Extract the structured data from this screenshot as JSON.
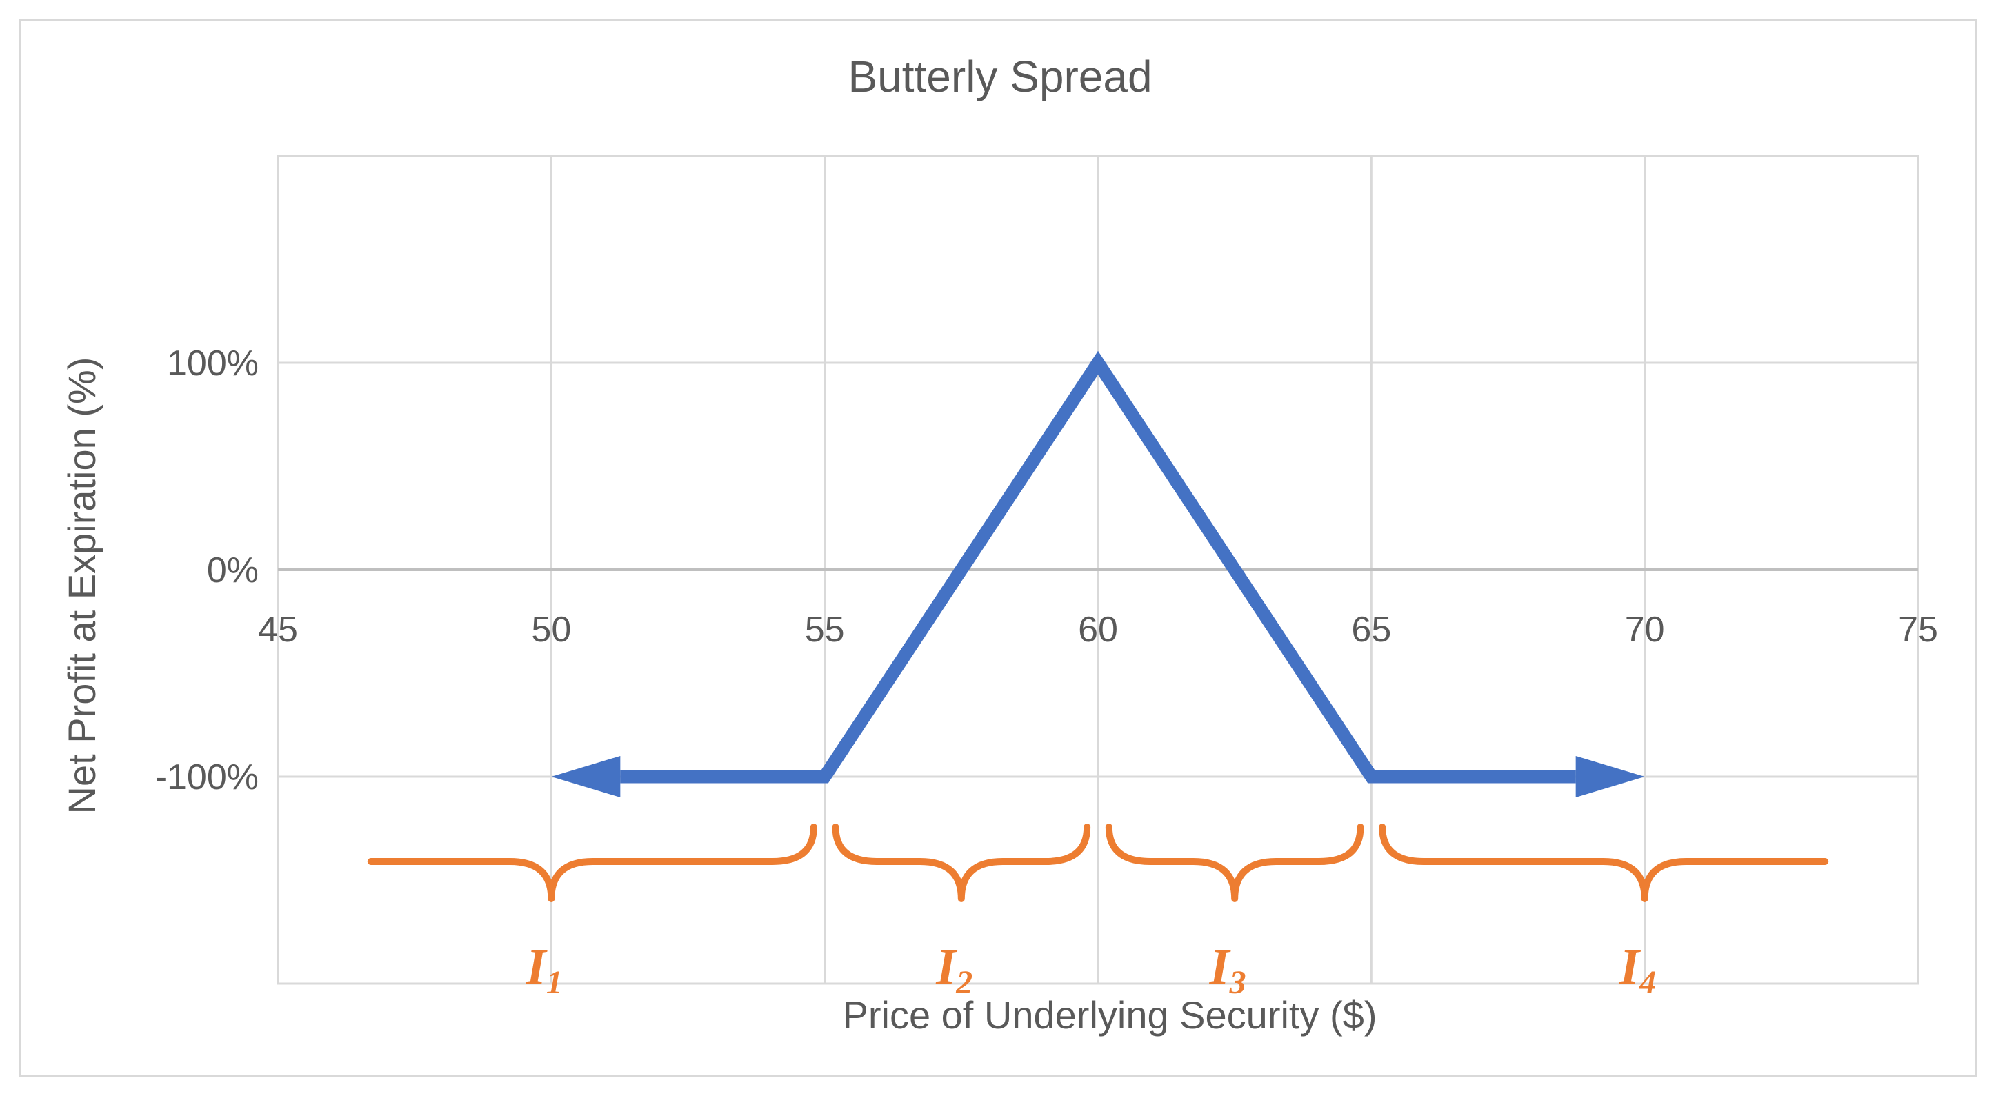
{
  "chart_data": {
    "type": "line",
    "title": "Butterly Spread",
    "xlabel": "Price of Underlying Security ($)",
    "ylabel": "Net Profit at Expiration (%)",
    "xlim": [
      45,
      75
    ],
    "ylim": [
      -200,
      200
    ],
    "x_ticks": [
      "45",
      "50",
      "55",
      "60",
      "65",
      "70",
      "75"
    ],
    "y_ticks": [
      {
        "value": 100,
        "label": "100%"
      },
      {
        "value": 0,
        "label": "0%"
      },
      {
        "value": -100,
        "label": "-100%"
      }
    ],
    "grid": true,
    "series": [
      {
        "color": "#4472c4",
        "points": [
          [
            50,
            -100
          ],
          [
            55,
            -100
          ],
          [
            60,
            100
          ],
          [
            65,
            -100
          ],
          [
            70,
            -100
          ]
        ],
        "arrow_start": true,
        "arrow_end": true
      }
    ],
    "intervals": [
      {
        "label": "I",
        "sub": "1",
        "from": 46.7,
        "to": 54.8,
        "center": 50
      },
      {
        "label": "I",
        "sub": "2",
        "from": 55.2,
        "to": 59.8,
        "center": 57.5
      },
      {
        "label": "I",
        "sub": "3",
        "from": 60.2,
        "to": 64.8,
        "center": 62.5
      },
      {
        "label": "I",
        "sub": "4",
        "from": 65.2,
        "to": 73.3,
        "center": 70
      }
    ],
    "interval_color": "#ed7d31"
  }
}
